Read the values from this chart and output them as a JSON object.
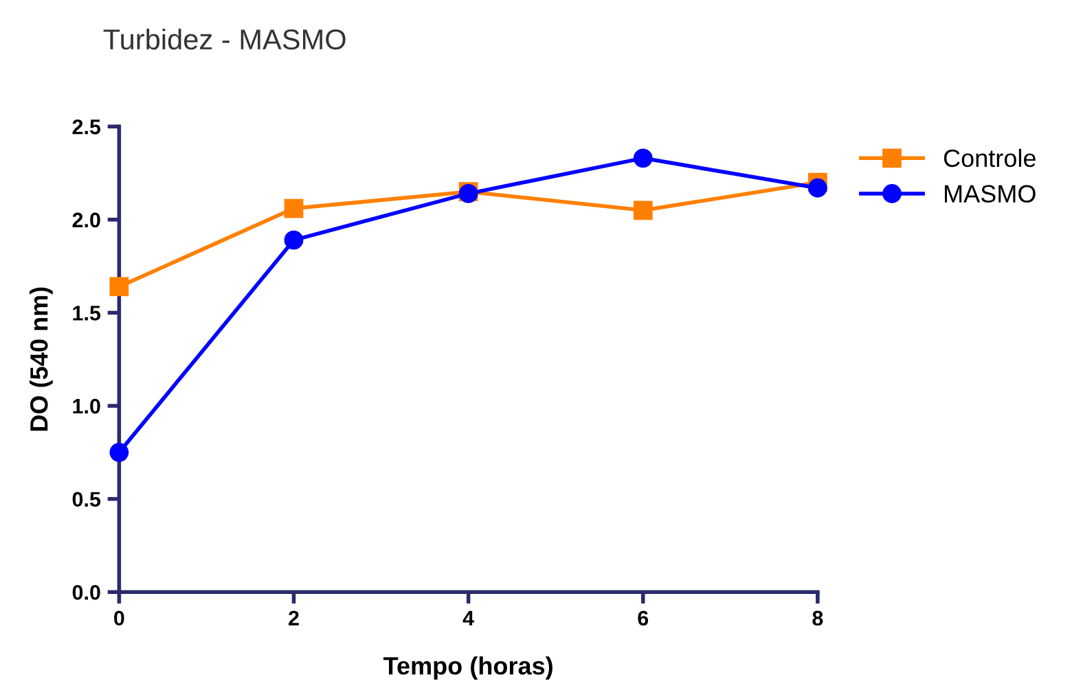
{
  "chart_data": {
    "type": "line",
    "title": "Turbidez - MASMO",
    "xlabel": "Tempo (horas)",
    "ylabel": "DO (540 nm)",
    "x": [
      0,
      2,
      4,
      6,
      8
    ],
    "series": [
      {
        "name": "Controle",
        "color": "#ff8000",
        "marker": "square",
        "values": [
          1.64,
          2.06,
          2.15,
          2.05,
          2.2
        ]
      },
      {
        "name": "MASMO",
        "color": "#0000ff",
        "marker": "circle",
        "values": [
          0.75,
          1.89,
          2.14,
          2.33,
          2.17
        ]
      }
    ],
    "xlim": [
      0,
      8
    ],
    "xticks": [
      0,
      2,
      4,
      6,
      8
    ],
    "ylim": [
      0,
      2.5
    ],
    "yticks": [
      {
        "value": 0,
        "label": "0.0"
      },
      {
        "value": 0.5,
        "label": "0.5"
      },
      {
        "value": 1,
        "label": "1.0"
      },
      {
        "value": 1.5,
        "label": "1.5"
      },
      {
        "value": 2,
        "label": "2.0"
      },
      {
        "value": 2.5,
        "label": "2.5"
      }
    ],
    "grid": false,
    "legend": "top right",
    "line_style": "solid"
  }
}
